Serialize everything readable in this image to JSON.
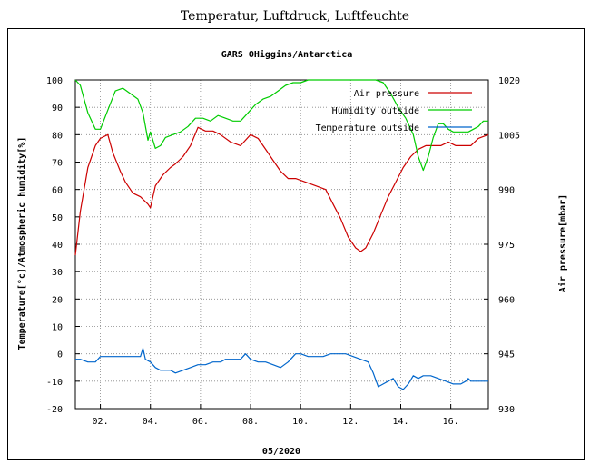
{
  "page": {
    "title": "Temperatur, Luftdruck, Luftfeuchte"
  },
  "chart_data": {
    "type": "line",
    "title": "GARS OHiggins/Antarctica",
    "xlabel": "05/2020",
    "ylabel": "Temperature[°c]/Atmospheric humidity[%]",
    "y2label": "Air pressure[mbar]",
    "xlim": [
      1.0,
      17.5
    ],
    "ylim": [
      -20,
      100
    ],
    "y2lim": [
      930,
      1020
    ],
    "x_ticks": [
      2,
      4,
      6,
      8,
      10,
      12,
      14,
      16
    ],
    "x_tick_labels": [
      "02.",
      "04.",
      "06.",
      "08.",
      "10.",
      "12.",
      "14.",
      "16."
    ],
    "y_ticks": [
      -20,
      -10,
      0,
      10,
      20,
      30,
      40,
      50,
      60,
      70,
      80,
      90,
      100
    ],
    "y_tick_labels": [
      "-20",
      "-10",
      "0",
      "10",
      "20",
      "30",
      "40",
      "50",
      "60",
      "70",
      "80",
      "90",
      "100"
    ],
    "y2_ticks": [
      930,
      945,
      960,
      975,
      990,
      1005,
      1020
    ],
    "y2_tick_labels": [
      "930",
      "945",
      "960",
      "975",
      "990",
      "1005",
      "1020"
    ],
    "grid": true,
    "legend_position": "top-right",
    "series": [
      {
        "name": "Air pressure",
        "axis": "right",
        "color": "#cc0000",
        "x": [
          1.0,
          1.2,
          1.5,
          1.8,
          2.0,
          2.3,
          2.5,
          2.8,
          3.0,
          3.3,
          3.6,
          3.9,
          4.0,
          4.2,
          4.5,
          4.8,
          5.0,
          5.3,
          5.6,
          5.9,
          6.2,
          6.5,
          6.8,
          7.2,
          7.6,
          8.0,
          8.3,
          8.6,
          8.9,
          9.2,
          9.5,
          9.8,
          10.2,
          10.6,
          11.0,
          11.3,
          11.6,
          11.9,
          12.2,
          12.4,
          12.6,
          12.9,
          13.2,
          13.5,
          13.8,
          14.1,
          14.4,
          14.7,
          15.0,
          15.3,
          15.6,
          15.9,
          16.2,
          16.5,
          16.8,
          17.1,
          17.5
        ],
        "y": [
          972,
          984,
          996,
          1002,
          1004,
          1005,
          1000,
          995,
          992,
          989,
          988,
          986,
          985,
          991,
          994,
          996,
          997,
          999,
          1002,
          1007,
          1006,
          1006,
          1005,
          1003,
          1002,
          1005,
          1004,
          1001,
          998,
          995,
          993,
          993,
          992,
          991,
          990,
          986,
          982,
          977,
          974,
          973,
          974,
          978,
          983,
          988,
          992,
          996,
          999,
          1001,
          1002,
          1002,
          1002,
          1003,
          1002,
          1002,
          1002,
          1004,
          1005
        ]
      },
      {
        "name": "Humidity outside",
        "axis": "left",
        "color": "#00cc00",
        "x": [
          1.0,
          1.2,
          1.5,
          1.8,
          2.0,
          2.3,
          2.6,
          2.9,
          3.2,
          3.5,
          3.7,
          3.9,
          4.0,
          4.2,
          4.4,
          4.6,
          4.9,
          5.2,
          5.5,
          5.8,
          6.1,
          6.4,
          6.7,
          7.0,
          7.3,
          7.6,
          7.9,
          8.2,
          8.5,
          8.8,
          9.1,
          9.4,
          9.7,
          10.0,
          10.3,
          10.6,
          10.9,
          11.2,
          11.5,
          11.8,
          12.1,
          12.4,
          12.7,
          13.0,
          13.3,
          13.6,
          13.9,
          14.2,
          14.5,
          14.7,
          14.9,
          15.1,
          15.3,
          15.5,
          15.7,
          15.9,
          16.1,
          16.3,
          16.5,
          16.7,
          16.9,
          17.1,
          17.3,
          17.5
        ],
        "y": [
          100,
          98,
          88,
          82,
          82,
          89,
          96,
          97,
          95,
          93,
          88,
          78,
          81,
          75,
          76,
          79,
          80,
          81,
          83,
          86,
          86,
          85,
          87,
          86,
          85,
          85,
          88,
          91,
          93,
          94,
          96,
          98,
          99,
          99,
          100,
          100,
          100,
          100,
          100,
          100,
          100,
          100,
          100,
          100,
          99,
          95,
          90,
          86,
          80,
          72,
          67,
          72,
          79,
          84,
          84,
          82,
          81,
          81,
          81,
          81,
          82,
          83,
          85,
          85
        ]
      },
      {
        "name": "Temperature outside",
        "axis": "left",
        "color": "#0066cc",
        "x": [
          1.0,
          1.2,
          1.5,
          1.8,
          2.0,
          2.3,
          2.6,
          2.9,
          3.2,
          3.4,
          3.6,
          3.7,
          3.8,
          4.0,
          4.2,
          4.4,
          4.6,
          4.8,
          5.0,
          5.3,
          5.6,
          5.9,
          6.2,
          6.5,
          6.8,
          7.0,
          7.3,
          7.6,
          7.8,
          8.0,
          8.3,
          8.6,
          8.9,
          9.2,
          9.5,
          9.8,
          10.0,
          10.3,
          10.6,
          10.9,
          11.2,
          11.5,
          11.8,
          12.1,
          12.4,
          12.7,
          12.9,
          13.1,
          13.3,
          13.5,
          13.7,
          13.9,
          14.1,
          14.3,
          14.5,
          14.7,
          14.9,
          15.2,
          15.5,
          15.8,
          16.1,
          16.4,
          16.6,
          16.7,
          16.8,
          17.0,
          17.2,
          17.5
        ],
        "y": [
          -2,
          -2,
          -3,
          -3,
          -1,
          -1,
          -1,
          -1,
          -1,
          -1,
          -1,
          2,
          -2,
          -3,
          -5,
          -6,
          -6,
          -6,
          -7,
          -6,
          -5,
          -4,
          -4,
          -3,
          -3,
          -2,
          -2,
          -2,
          0,
          -2,
          -3,
          -3,
          -4,
          -5,
          -3,
          0,
          0,
          -1,
          -1,
          -1,
          0,
          0,
          0,
          -1,
          -2,
          -3,
          -7,
          -12,
          -11,
          -10,
          -9,
          -12,
          -13,
          -11,
          -8,
          -9,
          -8,
          -8,
          -9,
          -10,
          -11,
          -11,
          -10,
          -9,
          -10,
          -10,
          -10,
          -10
        ]
      }
    ]
  }
}
